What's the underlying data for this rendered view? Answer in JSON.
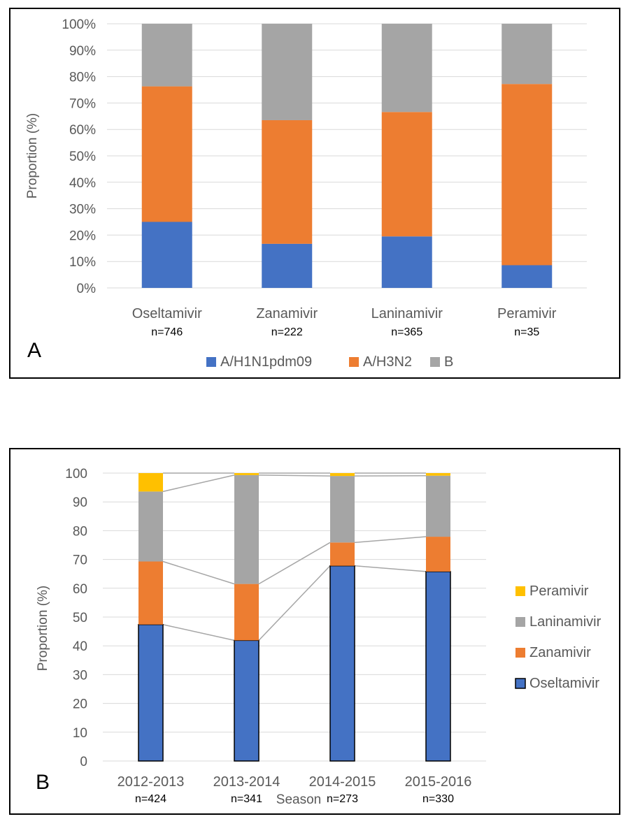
{
  "chart_data": [
    {
      "panel": "A",
      "type": "bar",
      "stacked": true,
      "ylabel": "Proportion (%)",
      "ylim": [
        0,
        100
      ],
      "yticks": [
        "0%",
        "10%",
        "20%",
        "30%",
        "40%",
        "50%",
        "60%",
        "70%",
        "80%",
        "90%",
        "100%"
      ],
      "categories": [
        "Oseltamivir",
        "Zanamivir",
        "Laninamivir",
        "Peramivir"
      ],
      "counts": [
        "n=746",
        "n=222",
        "n=365",
        "n=35"
      ],
      "series": [
        {
          "name": "A/H1N1pdm09",
          "color": "#4472C4",
          "values": [
            25.0,
            16.7,
            19.5,
            8.6
          ]
        },
        {
          "name": "A/H3N2",
          "color": "#ED7D31",
          "values": [
            51.3,
            46.8,
            47.1,
            68.6
          ]
        },
        {
          "name": "B",
          "color": "#A5A5A5",
          "values": [
            23.7,
            36.5,
            33.4,
            22.8
          ]
        }
      ],
      "legend_position": "bottom",
      "grid": true
    },
    {
      "panel": "B",
      "type": "bar",
      "stacked": true,
      "xlabel": "Season",
      "ylabel": "Proportion (%)",
      "ylim": [
        0,
        100
      ],
      "yticks": [
        "0",
        "10",
        "20",
        "30",
        "40",
        "50",
        "60",
        "70",
        "80",
        "90",
        "100"
      ],
      "categories": [
        "2012-2013",
        "2013-2014",
        "2014-2015",
        "2015-2016"
      ],
      "counts": [
        "n=424",
        "n=341",
        "n=273",
        "n=330"
      ],
      "series": [
        {
          "name": "Oseltamivir",
          "color": "#4472C4",
          "values": [
            47.4,
            41.9,
            67.8,
            65.8
          ]
        },
        {
          "name": "Zanamivir",
          "color": "#ED7D31",
          "values": [
            21.9,
            19.6,
            8.1,
            12.1
          ]
        },
        {
          "name": "Laninamivir",
          "color": "#A5A5A5",
          "values": [
            24.3,
            37.8,
            23.1,
            21.2
          ]
        },
        {
          "name": "Peramivir",
          "color": "#FFC000",
          "values": [
            6.4,
            0.7,
            1.0,
            0.9
          ]
        }
      ],
      "series_lines": true,
      "legend_position": "right",
      "grid": true
    }
  ],
  "panel_labels": {
    "a": "A",
    "b": "B"
  }
}
